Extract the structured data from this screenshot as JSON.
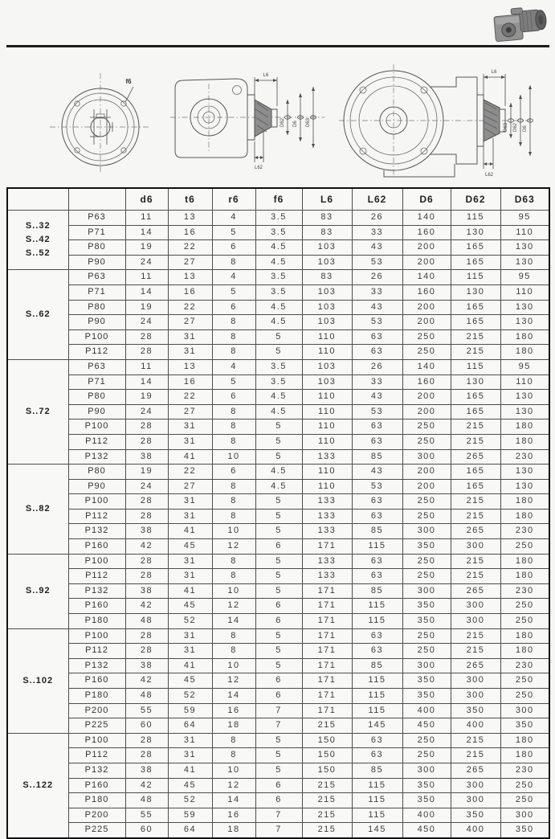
{
  "drawings": {
    "flange": {
      "callout": "f6"
    },
    "side_small": {
      "top_dim": "L6",
      "bottom_dim": "L62",
      "dia_dims": [
        "D62",
        "D6",
        "D63"
      ]
    },
    "side_large": {
      "top_dim": "L6",
      "bottom_dim": "L62",
      "dia_dims": [
        "D63",
        "D62",
        "D6"
      ]
    }
  },
  "table": {
    "columns": [
      "",
      "",
      "d6",
      "t6",
      "r6",
      "f6",
      "L6",
      "L62",
      "D6",
      "D62",
      "D63"
    ],
    "groups": [
      {
        "label_lines": [
          "S..32",
          "S..42",
          "S..52"
        ],
        "rows": [
          {
            "size": "P63",
            "values": [
              "11",
              "13",
              "4",
              "3.5",
              "83",
              "26",
              "140",
              "115",
              "95"
            ]
          },
          {
            "size": "P71",
            "values": [
              "14",
              "16",
              "5",
              "3.5",
              "83",
              "33",
              "160",
              "130",
              "110"
            ]
          },
          {
            "size": "P80",
            "values": [
              "19",
              "22",
              "6",
              "4.5",
              "103",
              "43",
              "200",
              "165",
              "130"
            ]
          },
          {
            "size": "P90",
            "values": [
              "24",
              "27",
              "8",
              "4.5",
              "103",
              "53",
              "200",
              "165",
              "130"
            ]
          }
        ]
      },
      {
        "label_lines": [
          "S..62"
        ],
        "rows": [
          {
            "size": "P63",
            "values": [
              "11",
              "13",
              "4",
              "3.5",
              "83",
              "26",
              "140",
              "115",
              "95"
            ]
          },
          {
            "size": "P71",
            "values": [
              "14",
              "16",
              "5",
              "3.5",
              "103",
              "33",
              "160",
              "130",
              "110"
            ]
          },
          {
            "size": "P80",
            "values": [
              "19",
              "22",
              "6",
              "4.5",
              "103",
              "43",
              "200",
              "165",
              "130"
            ]
          },
          {
            "size": "P90",
            "values": [
              "24",
              "27",
              "8",
              "4.5",
              "103",
              "53",
              "200",
              "165",
              "130"
            ]
          },
          {
            "size": "P100",
            "values": [
              "28",
              "31",
              "8",
              "5",
              "110",
              "63",
              "250",
              "215",
              "180"
            ]
          },
          {
            "size": "P112",
            "values": [
              "28",
              "31",
              "8",
              "5",
              "110",
              "63",
              "250",
              "215",
              "180"
            ]
          }
        ]
      },
      {
        "label_lines": [
          "S..72"
        ],
        "rows": [
          {
            "size": "P63",
            "values": [
              "11",
              "13",
              "4",
              "3.5",
              "103",
              "26",
              "140",
              "115",
              "95"
            ]
          },
          {
            "size": "P71",
            "values": [
              "14",
              "16",
              "5",
              "3.5",
              "103",
              "33",
              "160",
              "130",
              "110"
            ]
          },
          {
            "size": "P80",
            "values": [
              "19",
              "22",
              "6",
              "4.5",
              "110",
              "43",
              "200",
              "165",
              "130"
            ]
          },
          {
            "size": "P90",
            "values": [
              "24",
              "27",
              "8",
              "4.5",
              "110",
              "53",
              "200",
              "165",
              "130"
            ]
          },
          {
            "size": "P100",
            "values": [
              "28",
              "31",
              "8",
              "5",
              "110",
              "63",
              "250",
              "215",
              "180"
            ]
          },
          {
            "size": "P112",
            "values": [
              "28",
              "31",
              "8",
              "5",
              "110",
              "63",
              "250",
              "215",
              "180"
            ]
          },
          {
            "size": "P132",
            "values": [
              "38",
              "41",
              "10",
              "5",
              "133",
              "85",
              "300",
              "265",
              "230"
            ]
          }
        ]
      },
      {
        "label_lines": [
          "S..82"
        ],
        "rows": [
          {
            "size": "P80",
            "values": [
              "19",
              "22",
              "6",
              "4.5",
              "110",
              "43",
              "200",
              "165",
              "130"
            ]
          },
          {
            "size": "P90",
            "values": [
              "24",
              "27",
              "8",
              "4.5",
              "110",
              "53",
              "200",
              "165",
              "130"
            ]
          },
          {
            "size": "P100",
            "values": [
              "28",
              "31",
              "8",
              "5",
              "133",
              "63",
              "250",
              "215",
              "180"
            ]
          },
          {
            "size": "P112",
            "values": [
              "28",
              "31",
              "8",
              "5",
              "133",
              "63",
              "250",
              "215",
              "180"
            ]
          },
          {
            "size": "P132",
            "values": [
              "38",
              "41",
              "10",
              "5",
              "133",
              "85",
              "300",
              "265",
              "230"
            ]
          },
          {
            "size": "P160",
            "values": [
              "42",
              "45",
              "12",
              "6",
              "171",
              "115",
              "350",
              "300",
              "250"
            ]
          }
        ]
      },
      {
        "label_lines": [
          "S..92"
        ],
        "rows": [
          {
            "size": "P100",
            "values": [
              "28",
              "31",
              "8",
              "5",
              "133",
              "63",
              "250",
              "215",
              "180"
            ]
          },
          {
            "size": "P112",
            "values": [
              "28",
              "31",
              "8",
              "5",
              "133",
              "63",
              "250",
              "215",
              "180"
            ]
          },
          {
            "size": "P132",
            "values": [
              "38",
              "41",
              "10",
              "5",
              "171",
              "85",
              "300",
              "265",
              "230"
            ]
          },
          {
            "size": "P160",
            "values": [
              "42",
              "45",
              "12",
              "6",
              "171",
              "115",
              "350",
              "300",
              "250"
            ]
          },
          {
            "size": "P180",
            "values": [
              "48",
              "52",
              "14",
              "6",
              "171",
              "115",
              "350",
              "300",
              "250"
            ]
          }
        ]
      },
      {
        "label_lines": [
          "S..102"
        ],
        "rows": [
          {
            "size": "P100",
            "values": [
              "28",
              "31",
              "8",
              "5",
              "171",
              "63",
              "250",
              "215",
              "180"
            ]
          },
          {
            "size": "P112",
            "values": [
              "28",
              "31",
              "8",
              "5",
              "171",
              "63",
              "250",
              "215",
              "180"
            ]
          },
          {
            "size": "P132",
            "values": [
              "38",
              "41",
              "10",
              "5",
              "171",
              "85",
              "300",
              "265",
              "230"
            ]
          },
          {
            "size": "P160",
            "values": [
              "42",
              "45",
              "12",
              "6",
              "171",
              "115",
              "350",
              "300",
              "250"
            ]
          },
          {
            "size": "P180",
            "values": [
              "48",
              "52",
              "14",
              "6",
              "171",
              "115",
              "350",
              "300",
              "250"
            ]
          },
          {
            "size": "P200",
            "values": [
              "55",
              "59",
              "16",
              "7",
              "171",
              "115",
              "400",
              "350",
              "300"
            ]
          },
          {
            "size": "P225",
            "values": [
              "60",
              "64",
              "18",
              "7",
              "215",
              "145",
              "450",
              "400",
              "350"
            ]
          }
        ]
      },
      {
        "label_lines": [
          "S..122"
        ],
        "rows": [
          {
            "size": "P100",
            "values": [
              "28",
              "31",
              "8",
              "5",
              "150",
              "63",
              "250",
              "215",
              "180"
            ]
          },
          {
            "size": "P112",
            "values": [
              "28",
              "31",
              "8",
              "5",
              "150",
              "63",
              "250",
              "215",
              "180"
            ]
          },
          {
            "size": "P132",
            "values": [
              "38",
              "41",
              "10",
              "5",
              "150",
              "85",
              "300",
              "265",
              "230"
            ]
          },
          {
            "size": "P160",
            "values": [
              "42",
              "45",
              "12",
              "6",
              "215",
              "115",
              "350",
              "300",
              "250"
            ]
          },
          {
            "size": "P180",
            "values": [
              "48",
              "52",
              "14",
              "6",
              "215",
              "115",
              "350",
              "300",
              "250"
            ]
          },
          {
            "size": "P200",
            "values": [
              "55",
              "59",
              "16",
              "7",
              "215",
              "115",
              "400",
              "350",
              "300"
            ]
          },
          {
            "size": "P225",
            "values": [
              "60",
              "64",
              "18",
              "7",
              "215",
              "145",
              "450",
              "400",
              "350"
            ]
          }
        ]
      }
    ]
  }
}
